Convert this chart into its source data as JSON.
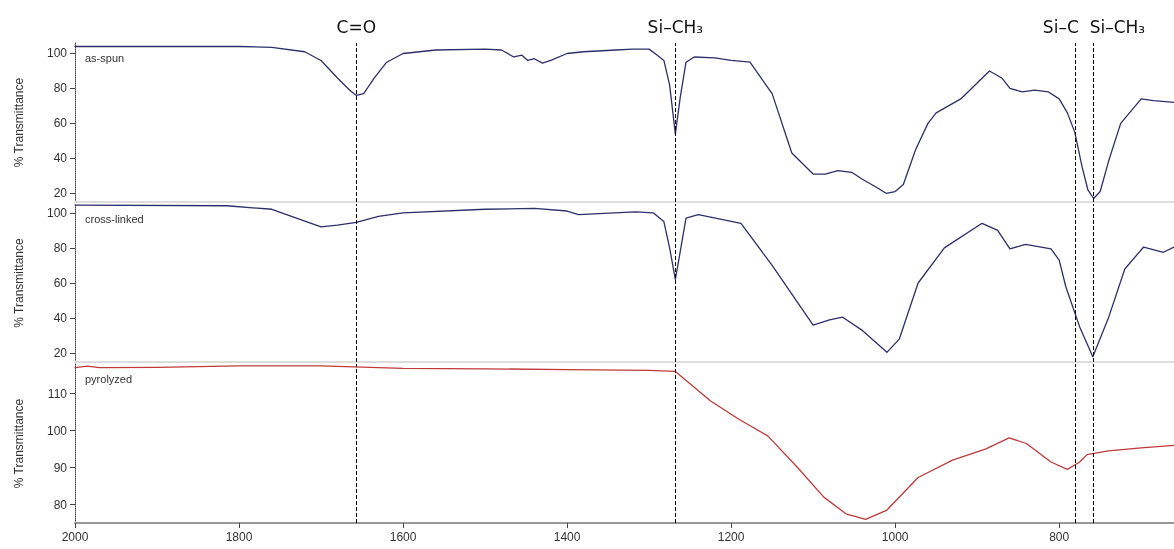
{
  "chart_data": [
    {
      "type": "line",
      "ylabel": "% Transmittance",
      "xlim": [
        2000,
        660
      ],
      "ylim": [
        15,
        106
      ],
      "yticks": [
        20,
        40,
        60,
        80,
        100
      ],
      "tick_labels": "y",
      "grid": false,
      "legend": false,
      "marker": "none",
      "line_style": "solid",
      "series": [
        {
          "name": "as-spun",
          "color": "#2e2e6a",
          "x": [
            2000,
            1800,
            1760,
            1720,
            1700,
            1680,
            1665,
            1657,
            1648,
            1635,
            1620,
            1600,
            1560,
            1500,
            1480,
            1465,
            1455,
            1448,
            1440,
            1430,
            1420,
            1400,
            1380,
            1340,
            1320,
            1300,
            1290,
            1282,
            1275,
            1268,
            1262,
            1255,
            1245,
            1220,
            1200,
            1177,
            1150,
            1126,
            1100,
            1085,
            1070,
            1053,
            1040,
            1025,
            1011,
            1000,
            990,
            975,
            960,
            950,
            920,
            885,
            870,
            860,
            845,
            830,
            813,
            800,
            790,
            781,
            772,
            765,
            758,
            750,
            740,
            725,
            700,
            685,
            660
          ],
          "values": [
            104,
            104,
            103.5,
            101,
            96,
            86,
            79,
            76,
            77,
            86,
            95,
            100,
            102,
            102.5,
            102,
            98,
            99,
            96,
            97,
            94.5,
            96,
            100,
            101,
            102,
            102.5,
            102.5,
            99,
            96,
            82,
            54,
            75,
            95,
            98,
            97.5,
            96,
            95,
            77,
            43,
            31,
            31,
            33,
            32,
            28,
            24,
            20,
            21,
            25,
            45,
            60,
            66,
            74,
            90,
            86,
            80,
            78,
            79,
            78,
            74,
            66,
            55,
            35,
            22,
            17,
            21,
            38,
            60,
            74,
            73,
            72
          ]
        }
      ],
      "ref_lines": [
        {
          "axis": "x",
          "value": 1657,
          "label": "C=O"
        },
        {
          "axis": "x",
          "value": 1268,
          "label": "Si–CH₃"
        },
        {
          "axis": "x",
          "value": 781,
          "label": "Si–C"
        },
        {
          "axis": "x",
          "value": 758,
          "label": "Si–CH₃"
        }
      ]
    },
    {
      "type": "line",
      "ylabel": "% Transmittance",
      "xlim": [
        2000,
        660
      ],
      "ylim": [
        15,
        105
      ],
      "yticks": [
        20,
        40,
        60,
        80,
        100
      ],
      "tick_labels": "y",
      "grid": false,
      "legend": false,
      "marker": "none",
      "line_style": "solid",
      "series": [
        {
          "name": "cross-linked",
          "color": "#2e2e6a",
          "x": [
            2000,
            1815,
            1760,
            1730,
            1700,
            1680,
            1657,
            1630,
            1600,
            1500,
            1440,
            1400,
            1386,
            1317,
            1295,
            1282,
            1275,
            1268,
            1262,
            1255,
            1240,
            1188,
            1150,
            1100,
            1080,
            1064,
            1040,
            1010,
            995,
            972,
            940,
            894,
            875,
            860,
            841,
            810,
            800,
            792,
            775,
            759,
            740,
            720,
            697,
            673,
            660
          ],
          "values": [
            104.4,
            104,
            102,
            97,
            92,
            93,
            94.5,
            98,
            100,
            102,
            102.5,
            101,
            99,
            100.5,
            100,
            95,
            80,
            62,
            78,
            97,
            99,
            94,
            70,
            36,
            39,
            40.5,
            33,
            20.5,
            28,
            60,
            80,
            94,
            90,
            79.5,
            82,
            79.5,
            73,
            58,
            35,
            18,
            40,
            68,
            80.5,
            77.5,
            80.5
          ]
        }
      ],
      "ref_lines": [
        {
          "axis": "x",
          "value": 1657
        },
        {
          "axis": "x",
          "value": 1268
        },
        {
          "axis": "x",
          "value": 781
        },
        {
          "axis": "x",
          "value": 758
        }
      ]
    },
    {
      "type": "line",
      "ylabel": "% Transmittance",
      "xlim": [
        2000,
        660
      ],
      "ylim": [
        75,
        118
      ],
      "yticks": [
        80,
        90,
        100,
        110
      ],
      "xticks": [
        2000,
        1800,
        1600,
        1400,
        1200,
        1000,
        800
      ],
      "grid": false,
      "legend": false,
      "marker": "none",
      "line_style": "solid",
      "series": [
        {
          "name": "pyrolyzed",
          "color": "#c0393b",
          "x": [
            2000,
            1985,
            1970,
            1900,
            1800,
            1700,
            1600,
            1500,
            1400,
            1300,
            1268,
            1225,
            1190,
            1155,
            1119,
            1087,
            1060,
            1036,
            1010,
            972,
            930,
            890,
            861,
            840,
            810,
            790,
            775,
            766,
            740,
            700,
            660
          ],
          "values": [
            117,
            117.4,
            117,
            117.1,
            117.5,
            117.5,
            116.8,
            116.7,
            116.5,
            116.3,
            116,
            108,
            103,
            98.5,
            90,
            82,
            77.5,
            76,
            78.5,
            87.3,
            92,
            95,
            98,
            96.5,
            91.5,
            89.5,
            91.5,
            93.5,
            94.5,
            95.3,
            96
          ]
        }
      ],
      "ref_lines": [
        {
          "axis": "x",
          "value": 1657
        },
        {
          "axis": "x",
          "value": 1268
        },
        {
          "axis": "x",
          "value": 781
        },
        {
          "axis": "x",
          "value": 758
        }
      ]
    }
  ]
}
